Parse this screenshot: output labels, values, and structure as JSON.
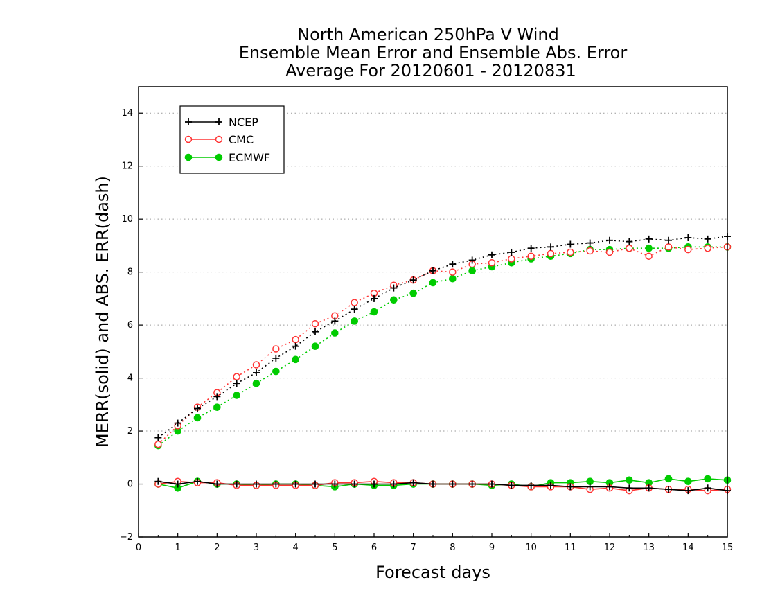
{
  "chart_data": {
    "type": "line",
    "title": [
      "North American 250hPa V Wind",
      "Ensemble Mean Error and Ensemble Abs. Error",
      "Average For 20120601 - 20120831"
    ],
    "xlabel": "Forecast days",
    "ylabel": "MERR(solid) and ABS. ERR(dash)",
    "xlim": [
      0,
      15
    ],
    "ylim": [
      -2,
      15
    ],
    "xticks": [
      0,
      1,
      2,
      3,
      4,
      5,
      6,
      7,
      8,
      9,
      10,
      11,
      12,
      13,
      14,
      15
    ],
    "yticks": [
      -2,
      0,
      2,
      4,
      6,
      8,
      10,
      12,
      14
    ],
    "grid": "horizontal dotted",
    "legend_position": "top-left",
    "x": [
      0.5,
      1,
      1.5,
      2,
      2.5,
      3,
      3.5,
      4,
      4.5,
      5,
      5.5,
      6,
      6.5,
      7,
      7.5,
      8,
      8.5,
      9,
      9.5,
      10,
      10.5,
      11,
      11.5,
      12,
      12.5,
      13,
      13.5,
      14,
      14.5,
      15
    ],
    "series": [
      {
        "name": "NCEP",
        "color": "#000000",
        "marker": "plus",
        "abs_err": [
          1.75,
          2.3,
          2.85,
          3.3,
          3.8,
          4.2,
          4.75,
          5.2,
          5.75,
          6.15,
          6.6,
          7.0,
          7.4,
          7.7,
          8.05,
          8.3,
          8.45,
          8.65,
          8.75,
          8.9,
          8.95,
          9.05,
          9.1,
          9.2,
          9.15,
          9.25,
          9.2,
          9.3,
          9.25,
          9.35
        ],
        "mean_err": [
          0.1,
          0.0,
          0.1,
          0.0,
          0.0,
          0.0,
          0.0,
          0.0,
          0.0,
          0.0,
          0.0,
          0.0,
          0.0,
          0.05,
          0.0,
          0.0,
          0.0,
          0.0,
          -0.05,
          -0.05,
          -0.05,
          -0.1,
          -0.1,
          -0.1,
          -0.15,
          -0.15,
          -0.2,
          -0.25,
          -0.15,
          -0.25
        ]
      },
      {
        "name": "CMC",
        "color": "#ff3333",
        "marker": "open-circle",
        "abs_err": [
          1.5,
          2.2,
          2.9,
          3.45,
          4.05,
          4.5,
          5.1,
          5.45,
          6.05,
          6.35,
          6.85,
          7.2,
          7.5,
          7.7,
          8.05,
          8.0,
          8.3,
          8.35,
          8.5,
          8.6,
          8.7,
          8.75,
          8.8,
          8.75,
          8.9,
          8.6,
          8.95,
          8.85,
          8.9,
          8.95
        ],
        "mean_err": [
          0.0,
          0.1,
          0.05,
          0.05,
          -0.05,
          -0.05,
          -0.05,
          -0.05,
          -0.05,
          0.05,
          0.05,
          0.1,
          0.05,
          0.05,
          0.0,
          0.0,
          0.0,
          0.0,
          -0.05,
          -0.1,
          -0.1,
          -0.1,
          -0.2,
          -0.15,
          -0.25,
          -0.15,
          -0.2,
          -0.2,
          -0.25,
          -0.2
        ]
      },
      {
        "name": "ECMWF",
        "color": "#00cc00",
        "marker": "filled-circle",
        "abs_err": [
          1.45,
          2.0,
          2.5,
          2.9,
          3.35,
          3.8,
          4.25,
          4.7,
          5.2,
          5.7,
          6.15,
          6.5,
          6.95,
          7.2,
          7.6,
          7.75,
          8.05,
          8.2,
          8.35,
          8.5,
          8.6,
          8.7,
          8.85,
          8.85,
          8.9,
          8.9,
          8.9,
          8.95,
          8.95,
          8.95
        ],
        "mean_err": [
          0.0,
          -0.15,
          0.1,
          0.0,
          0.0,
          -0.05,
          0.0,
          0.0,
          -0.05,
          -0.1,
          0.0,
          -0.05,
          -0.05,
          0.0,
          0.0,
          0.0,
          0.0,
          -0.05,
          0.0,
          -0.1,
          0.05,
          0.05,
          0.1,
          0.05,
          0.15,
          0.05,
          0.2,
          0.1,
          0.2,
          0.15
        ]
      }
    ]
  }
}
